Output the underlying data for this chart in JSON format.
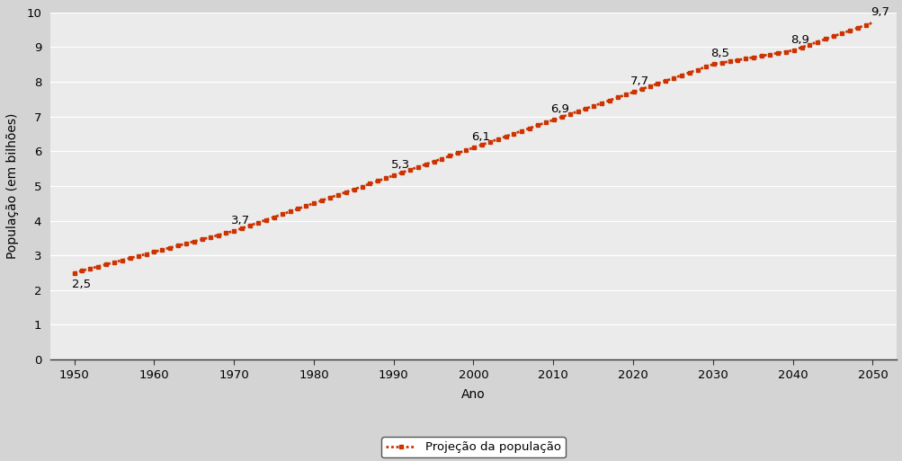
{
  "years": [
    1950,
    1970,
    1990,
    2000,
    2010,
    2020,
    2030,
    2040,
    2050
  ],
  "population": [
    2.5,
    3.7,
    5.3,
    6.1,
    6.9,
    7.7,
    8.5,
    8.9,
    9.7
  ],
  "line_color": "#cc3300",
  "marker_color": "#cc3300",
  "xlabel": "Ano",
  "ylabel": "População (em bilhões)",
  "legend_label": "Projeção da população",
  "xlim": [
    1947,
    2053
  ],
  "ylim": [
    0,
    10
  ],
  "xticks": [
    1950,
    1960,
    1970,
    1980,
    1990,
    2000,
    2010,
    2020,
    2030,
    2040,
    2050
  ],
  "yticks": [
    0,
    1,
    2,
    3,
    4,
    5,
    6,
    7,
    8,
    9,
    10
  ],
  "bg_color": "#d4d4d4",
  "plot_bg_color": "#ebebeb",
  "grid_color": "#ffffff",
  "label_fontsize": 9.5,
  "axis_fontsize": 10,
  "tick_fontsize": 9.5
}
